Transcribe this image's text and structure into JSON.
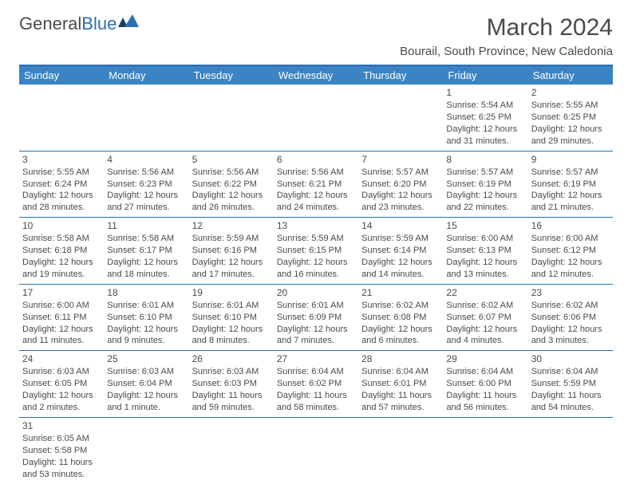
{
  "logo": {
    "textA": "General",
    "textB": "Blue"
  },
  "title": "March 2024",
  "subtitle": "Bourail, South Province, New Caledonia",
  "colors": {
    "header_bg": "#3a84c5",
    "header_border": "#2b6fb0",
    "text": "#4a4a4a",
    "logo_blue": "#2b6fb0"
  },
  "dayHeaders": [
    "Sunday",
    "Monday",
    "Tuesday",
    "Wednesday",
    "Thursday",
    "Friday",
    "Saturday"
  ],
  "weeks": [
    [
      {
        "empty": true
      },
      {
        "empty": true
      },
      {
        "empty": true
      },
      {
        "empty": true
      },
      {
        "empty": true
      },
      {
        "day": "1",
        "sunrise": "Sunrise: 5:54 AM",
        "sunset": "Sunset: 6:25 PM",
        "daylight": "Daylight: 12 hours and 31 minutes."
      },
      {
        "day": "2",
        "sunrise": "Sunrise: 5:55 AM",
        "sunset": "Sunset: 6:25 PM",
        "daylight": "Daylight: 12 hours and 29 minutes."
      }
    ],
    [
      {
        "day": "3",
        "sunrise": "Sunrise: 5:55 AM",
        "sunset": "Sunset: 6:24 PM",
        "daylight": "Daylight: 12 hours and 28 minutes."
      },
      {
        "day": "4",
        "sunrise": "Sunrise: 5:56 AM",
        "sunset": "Sunset: 6:23 PM",
        "daylight": "Daylight: 12 hours and 27 minutes."
      },
      {
        "day": "5",
        "sunrise": "Sunrise: 5:56 AM",
        "sunset": "Sunset: 6:22 PM",
        "daylight": "Daylight: 12 hours and 26 minutes."
      },
      {
        "day": "6",
        "sunrise": "Sunrise: 5:56 AM",
        "sunset": "Sunset: 6:21 PM",
        "daylight": "Daylight: 12 hours and 24 minutes."
      },
      {
        "day": "7",
        "sunrise": "Sunrise: 5:57 AM",
        "sunset": "Sunset: 6:20 PM",
        "daylight": "Daylight: 12 hours and 23 minutes."
      },
      {
        "day": "8",
        "sunrise": "Sunrise: 5:57 AM",
        "sunset": "Sunset: 6:19 PM",
        "daylight": "Daylight: 12 hours and 22 minutes."
      },
      {
        "day": "9",
        "sunrise": "Sunrise: 5:57 AM",
        "sunset": "Sunset: 6:19 PM",
        "daylight": "Daylight: 12 hours and 21 minutes."
      }
    ],
    [
      {
        "day": "10",
        "sunrise": "Sunrise: 5:58 AM",
        "sunset": "Sunset: 6:18 PM",
        "daylight": "Daylight: 12 hours and 19 minutes."
      },
      {
        "day": "11",
        "sunrise": "Sunrise: 5:58 AM",
        "sunset": "Sunset: 6:17 PM",
        "daylight": "Daylight: 12 hours and 18 minutes."
      },
      {
        "day": "12",
        "sunrise": "Sunrise: 5:59 AM",
        "sunset": "Sunset: 6:16 PM",
        "daylight": "Daylight: 12 hours and 17 minutes."
      },
      {
        "day": "13",
        "sunrise": "Sunrise: 5:59 AM",
        "sunset": "Sunset: 6:15 PM",
        "daylight": "Daylight: 12 hours and 16 minutes."
      },
      {
        "day": "14",
        "sunrise": "Sunrise: 5:59 AM",
        "sunset": "Sunset: 6:14 PM",
        "daylight": "Daylight: 12 hours and 14 minutes."
      },
      {
        "day": "15",
        "sunrise": "Sunrise: 6:00 AM",
        "sunset": "Sunset: 6:13 PM",
        "daylight": "Daylight: 12 hours and 13 minutes."
      },
      {
        "day": "16",
        "sunrise": "Sunrise: 6:00 AM",
        "sunset": "Sunset: 6:12 PM",
        "daylight": "Daylight: 12 hours and 12 minutes."
      }
    ],
    [
      {
        "day": "17",
        "sunrise": "Sunrise: 6:00 AM",
        "sunset": "Sunset: 6:11 PM",
        "daylight": "Daylight: 12 hours and 11 minutes."
      },
      {
        "day": "18",
        "sunrise": "Sunrise: 6:01 AM",
        "sunset": "Sunset: 6:10 PM",
        "daylight": "Daylight: 12 hours and 9 minutes."
      },
      {
        "day": "19",
        "sunrise": "Sunrise: 6:01 AM",
        "sunset": "Sunset: 6:10 PM",
        "daylight": "Daylight: 12 hours and 8 minutes."
      },
      {
        "day": "20",
        "sunrise": "Sunrise: 6:01 AM",
        "sunset": "Sunset: 6:09 PM",
        "daylight": "Daylight: 12 hours and 7 minutes."
      },
      {
        "day": "21",
        "sunrise": "Sunrise: 6:02 AM",
        "sunset": "Sunset: 6:08 PM",
        "daylight": "Daylight: 12 hours and 6 minutes."
      },
      {
        "day": "22",
        "sunrise": "Sunrise: 6:02 AM",
        "sunset": "Sunset: 6:07 PM",
        "daylight": "Daylight: 12 hours and 4 minutes."
      },
      {
        "day": "23",
        "sunrise": "Sunrise: 6:02 AM",
        "sunset": "Sunset: 6:06 PM",
        "daylight": "Daylight: 12 hours and 3 minutes."
      }
    ],
    [
      {
        "day": "24",
        "sunrise": "Sunrise: 6:03 AM",
        "sunset": "Sunset: 6:05 PM",
        "daylight": "Daylight: 12 hours and 2 minutes."
      },
      {
        "day": "25",
        "sunrise": "Sunrise: 6:03 AM",
        "sunset": "Sunset: 6:04 PM",
        "daylight": "Daylight: 12 hours and 1 minute."
      },
      {
        "day": "26",
        "sunrise": "Sunrise: 6:03 AM",
        "sunset": "Sunset: 6:03 PM",
        "daylight": "Daylight: 11 hours and 59 minutes."
      },
      {
        "day": "27",
        "sunrise": "Sunrise: 6:04 AM",
        "sunset": "Sunset: 6:02 PM",
        "daylight": "Daylight: 11 hours and 58 minutes."
      },
      {
        "day": "28",
        "sunrise": "Sunrise: 6:04 AM",
        "sunset": "Sunset: 6:01 PM",
        "daylight": "Daylight: 11 hours and 57 minutes."
      },
      {
        "day": "29",
        "sunrise": "Sunrise: 6:04 AM",
        "sunset": "Sunset: 6:00 PM",
        "daylight": "Daylight: 11 hours and 56 minutes."
      },
      {
        "day": "30",
        "sunrise": "Sunrise: 6:04 AM",
        "sunset": "Sunset: 5:59 PM",
        "daylight": "Daylight: 11 hours and 54 minutes."
      }
    ],
    [
      {
        "day": "31",
        "sunrise": "Sunrise: 6:05 AM",
        "sunset": "Sunset: 5:58 PM",
        "daylight": "Daylight: 11 hours and 53 minutes."
      },
      {
        "empty": true
      },
      {
        "empty": true
      },
      {
        "empty": true
      },
      {
        "empty": true
      },
      {
        "empty": true
      },
      {
        "empty": true
      }
    ]
  ]
}
